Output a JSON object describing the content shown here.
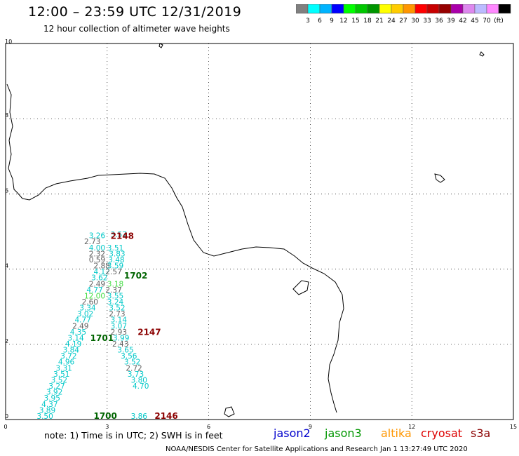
{
  "header": {
    "title": "12:00 – 23:59 UTC 12/31/2019",
    "subtitle": "12 hour collection of altimeter wave heights"
  },
  "colorbar": {
    "colors": [
      "#808080",
      "#00ffff",
      "#00b4ff",
      "#0000ff",
      "#00ff00",
      "#00c800",
      "#009600",
      "#ffff00",
      "#ffcc00",
      "#ff9600",
      "#ff0000",
      "#c80000",
      "#960000",
      "#aa00aa",
      "#dd88ee",
      "#bbbbff",
      "#ff88ff",
      "#000000"
    ],
    "labels": [
      "3",
      "6",
      "9",
      "12",
      "15",
      "18",
      "21",
      "24",
      "27",
      "30",
      "33",
      "36",
      "39",
      "42",
      "45",
      "70",
      "(ft)"
    ]
  },
  "axes": {
    "x_ticks": [
      "0",
      "3",
      "6",
      "9",
      "12",
      "15"
    ],
    "y_ticks": [
      "0",
      "2",
      "4",
      "6",
      "8",
      "10"
    ]
  },
  "tracks": [
    {
      "color": "#006400",
      "time_label": "1700",
      "time_pos": [
        2.6,
        0.02
      ],
      "dx": -0.18,
      "points": [
        [
          "3.50",
          "#00c8c8",
          1.1,
          0.02
        ],
        [
          "3.89",
          "#00c8c8",
          1.17,
          0.18
        ],
        [
          "4.37",
          "#00c8c8",
          1.24,
          0.34
        ],
        [
          "3.95",
          "#00c8c8",
          1.31,
          0.5
        ],
        [
          "3.92",
          "#00c8c8",
          1.38,
          0.66
        ],
        [
          "3.27",
          "#00c8c8",
          1.45,
          0.82
        ],
        [
          "3.52",
          "#00c8c8",
          1.52,
          0.98
        ],
        [
          "3.51",
          "#00c8c8",
          1.59,
          1.14
        ],
        [
          "3.31",
          "#00c8c8",
          1.66,
          1.3
        ],
        [
          "4.96",
          "#00c8c8",
          1.73,
          1.46
        ],
        [
          "3.72",
          "#00c8c8",
          1.8,
          1.62
        ],
        [
          "3.84",
          "#00c8c8",
          1.87,
          1.78
        ],
        [
          "4.19",
          "#00c8c8",
          1.94,
          1.94
        ],
        [
          "3.14",
          "#00c8c8",
          2.01,
          2.1
        ],
        [
          "4.35",
          "#00c8c8",
          2.08,
          2.26
        ],
        [
          "2.49",
          "#606060",
          2.15,
          2.42
        ],
        [
          "4.77",
          "#00c8c8",
          2.22,
          2.58
        ],
        [
          "3.02",
          "#00c8c8",
          2.29,
          2.74
        ],
        [
          "3.34",
          "#00c8c8",
          2.36,
          2.9
        ],
        [
          "2.60",
          "#606060",
          2.43,
          3.06
        ],
        [
          "12.00",
          "#44dd44",
          2.5,
          3.22
        ],
        [
          "4.77",
          "#00c8c8",
          2.57,
          3.38
        ],
        [
          "2.49",
          "#606060",
          2.64,
          3.54
        ],
        [
          "3.62",
          "#00c8c8",
          2.71,
          3.7
        ],
        [
          "4.12",
          "#00c8c8",
          2.78,
          3.86
        ],
        [
          "2.88",
          "#606060",
          2.78,
          4.02
        ],
        [
          "0.59",
          "#606060",
          2.64,
          4.18
        ],
        [
          "2.32",
          "#606060",
          2.64,
          4.34
        ],
        [
          "4.00",
          "#00c8c8",
          2.64,
          4.5
        ],
        [
          "2.73",
          "#606060",
          2.5,
          4.66
        ],
        [
          "3.26",
          "#00c8c8",
          2.64,
          4.82
        ]
      ]
    },
    {
      "color": "#006400",
      "time_label": "1701",
      "time_pos": [
        2.5,
        2.09
      ],
      "dx": 0.05,
      "points": [
        [
          "3.57",
          "#00c8c8",
          3.05,
          4.85
        ],
        [
          "3.51",
          "#00c8c8",
          2.95,
          4.5
        ],
        [
          "3.83",
          "#00c8c8",
          3.0,
          4.34
        ],
        [
          "3.48",
          "#00c8c8",
          2.98,
          4.18
        ],
        [
          "3.59",
          "#00c8c8",
          2.95,
          4.02
        ],
        [
          "2.57",
          "#606060",
          2.9,
          3.86
        ],
        [
          "3.18",
          "#44dd44",
          2.95,
          3.54
        ],
        [
          "2.37",
          "#606060",
          2.9,
          3.38
        ],
        [
          "3.55",
          "#00c8c8",
          2.95,
          3.22
        ],
        [
          "3.24",
          "#00c8c8",
          2.95,
          3.06
        ],
        [
          "3.52",
          "#00c8c8",
          3.0,
          2.9
        ],
        [
          "2.73",
          "#606060",
          3.0,
          2.74
        ],
        [
          "3.14",
          "#00c8c8",
          3.05,
          2.58
        ],
        [
          "3.07",
          "#00c8c8",
          3.05,
          2.42
        ],
        [
          "2.93",
          "#606060",
          3.05,
          2.26
        ],
        [
          "3.99",
          "#00c8c8",
          3.12,
          2.1
        ],
        [
          "2.43",
          "#606060",
          3.1,
          1.94
        ]
      ]
    },
    {
      "color": "#006400",
      "time_label": "1702",
      "time_pos": [
        3.5,
        3.75
      ],
      "dx": 0.0,
      "points": []
    },
    {
      "color": "#8b0000",
      "time_label": "2148",
      "time_pos": [
        3.1,
        4.8
      ],
      "dx": 0.0,
      "points": []
    },
    {
      "color": "#8b0000",
      "time_label": "2147",
      "time_pos": [
        3.9,
        2.25
      ],
      "dx": 0.0,
      "points": [
        [
          "3.65",
          "#00c8c8",
          3.3,
          1.78
        ],
        [
          "3.56",
          "#00c8c8",
          3.4,
          1.62
        ],
        [
          "3.52",
          "#00c8c8",
          3.5,
          1.46
        ],
        [
          "2.72",
          "#606060",
          3.55,
          1.3
        ],
        [
          "3.73",
          "#00c8c8",
          3.6,
          1.14
        ],
        [
          "3.80",
          "#00c8c8",
          3.7,
          0.98
        ],
        [
          "4.70",
          "#00c8c8",
          3.75,
          0.82
        ],
        [
          "3.86",
          "#00c8c8",
          3.7,
          0.02
        ]
      ]
    },
    {
      "color": "#8b0000",
      "time_label": "2146",
      "time_pos": [
        4.4,
        0.02
      ],
      "dx": 0.0,
      "points": []
    }
  ],
  "note": "note:  1) Time is in UTC;  2) SWH is in feet",
  "satellites": [
    {
      "name": "jason2",
      "color": "#0000cc"
    },
    {
      "name": "jason3",
      "color": "#009600"
    },
    {
      "name": "altika",
      "color": "#ff9600"
    },
    {
      "name": "cryosat",
      "color": "#dd0000"
    },
    {
      "name": "s3a",
      "color": "#8b0000"
    }
  ],
  "credit": "NOAA/NESDIS Center for Satellite Applications and Research     Jan  1 13:27:49 UTC 2020"
}
